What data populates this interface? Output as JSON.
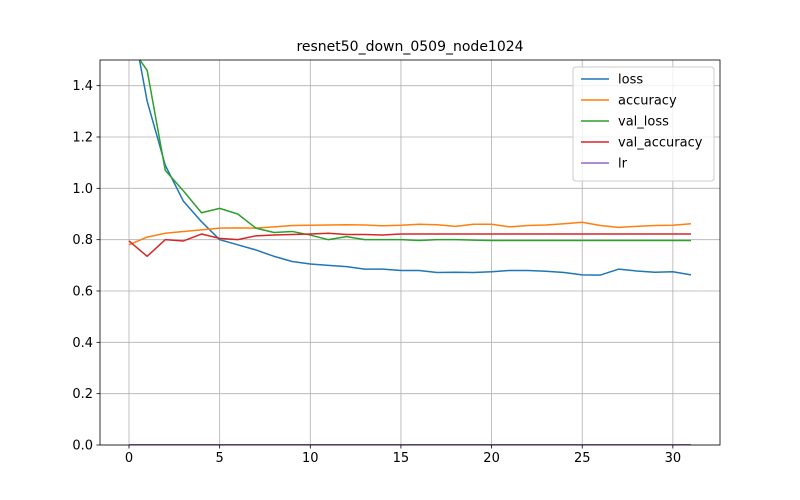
{
  "chart_data": {
    "type": "line",
    "title": "resnet50_down_0509_node1024",
    "xlabel": "",
    "ylabel": "",
    "xlim": [
      -1.6,
      32.6
    ],
    "ylim": [
      0,
      1.5
    ],
    "xticks": [
      0,
      5,
      10,
      15,
      20,
      25,
      30
    ],
    "yticks": [
      0.0,
      0.2,
      0.4,
      0.6,
      0.8,
      1.0,
      1.2,
      1.4
    ],
    "grid": true,
    "legend_position": "top-right",
    "x": [
      0,
      1,
      2,
      3,
      4,
      5,
      6,
      7,
      8,
      9,
      10,
      11,
      12,
      13,
      14,
      15,
      16,
      17,
      18,
      19,
      20,
      21,
      22,
      23,
      24,
      25,
      26,
      27,
      28,
      29,
      30,
      31
    ],
    "series": [
      {
        "name": "loss",
        "color": "#1f77b4",
        "values": [
          1.72,
          1.34,
          1.09,
          0.95,
          0.87,
          0.8,
          0.78,
          0.76,
          0.735,
          0.715,
          0.705,
          0.7,
          0.695,
          0.685,
          0.685,
          0.68,
          0.68,
          0.672,
          0.673,
          0.672,
          0.675,
          0.68,
          0.68,
          0.677,
          0.672,
          0.663,
          0.662,
          0.685,
          0.678,
          0.673,
          0.675,
          0.663
        ]
      },
      {
        "name": "accuracy",
        "color": "#ff7f0e",
        "values": [
          0.78,
          0.81,
          0.825,
          0.832,
          0.838,
          0.845,
          0.846,
          0.845,
          0.85,
          0.855,
          0.856,
          0.857,
          0.858,
          0.857,
          0.854,
          0.856,
          0.86,
          0.858,
          0.852,
          0.86,
          0.86,
          0.85,
          0.855,
          0.857,
          0.862,
          0.868,
          0.855,
          0.848,
          0.852,
          0.855,
          0.856,
          0.862
        ]
      },
      {
        "name": "val_loss",
        "color": "#2ca02c",
        "values": [
          1.56,
          1.46,
          1.07,
          0.99,
          0.905,
          0.922,
          0.9,
          0.845,
          0.828,
          0.832,
          0.818,
          0.8,
          0.812,
          0.8,
          0.8,
          0.8,
          0.797,
          0.8,
          0.8,
          0.798,
          0.797,
          0.797,
          0.797,
          0.797,
          0.797,
          0.797,
          0.797,
          0.797,
          0.797,
          0.797,
          0.797,
          0.797
        ]
      },
      {
        "name": "val_accuracy",
        "color": "#d62728",
        "values": [
          0.795,
          0.735,
          0.8,
          0.795,
          0.822,
          0.805,
          0.8,
          0.815,
          0.818,
          0.82,
          0.822,
          0.825,
          0.82,
          0.82,
          0.818,
          0.822,
          0.822,
          0.822,
          0.822,
          0.822,
          0.822,
          0.822,
          0.822,
          0.822,
          0.822,
          0.822,
          0.822,
          0.822,
          0.822,
          0.822,
          0.822,
          0.822
        ]
      },
      {
        "name": "lr",
        "color": "#9467bd",
        "values": [
          0.001,
          0.001,
          0.001,
          0.001,
          0.001,
          0.001,
          0.001,
          0.001,
          0.001,
          0.001,
          0.001,
          0.001,
          0.001,
          0.001,
          0.001,
          0.001,
          0.001,
          0.001,
          0.001,
          0.001,
          0.001,
          0.001,
          0.001,
          0.001,
          0.001,
          0.001,
          0.001,
          0.001,
          0.001,
          0.001,
          0.001,
          0.001
        ]
      }
    ]
  }
}
